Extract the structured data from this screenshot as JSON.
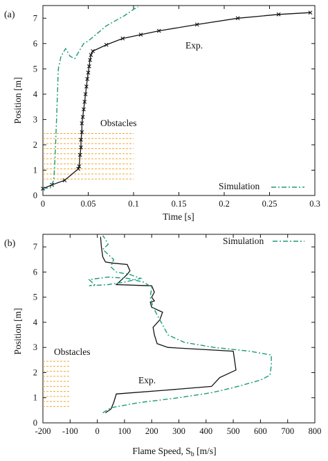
{
  "chart_data": [
    {
      "panel": "(a)",
      "type": "line",
      "xlabel": "Time [s]",
      "ylabel": "Position [m]",
      "xlim": [
        0,
        0.3
      ],
      "ylim": [
        0,
        7.5
      ],
      "xticks": [
        "0",
        "0.05",
        "0.1",
        "0.15",
        "0.2",
        "0.25",
        "0.3"
      ],
      "yticks": [
        "0",
        "1",
        "2",
        "3",
        "4",
        "5",
        "6",
        "7"
      ],
      "grid": false,
      "legend": {
        "position": "bottom-right",
        "label": "Simulation"
      },
      "annotations": {
        "exp": "Exp.",
        "obstacles": "Obstacles"
      },
      "obstacles": {
        "x_range": [
          0,
          0.1
        ],
        "positions": [
          0.65,
          0.85,
          1.05,
          1.25,
          1.45,
          1.65,
          1.85,
          2.05,
          2.25,
          2.45
        ],
        "color": "#f0a830"
      },
      "series": [
        {
          "name": "Exp.",
          "color": "#111111",
          "style": "solid-markers",
          "points": [
            [
              0.0,
              0.27
            ],
            [
              0.01,
              0.42
            ],
            [
              0.024,
              0.6
            ],
            [
              0.039,
              1.05
            ],
            [
              0.04,
              1.15
            ],
            [
              0.041,
              1.6
            ],
            [
              0.042,
              1.9
            ],
            [
              0.042,
              2.2
            ],
            [
              0.043,
              2.5
            ],
            [
              0.043,
              2.85
            ],
            [
              0.044,
              3.1
            ],
            [
              0.045,
              3.4
            ],
            [
              0.046,
              3.7
            ],
            [
              0.047,
              4.0
            ],
            [
              0.048,
              4.3
            ],
            [
              0.049,
              4.6
            ],
            [
              0.05,
              4.85
            ],
            [
              0.051,
              5.1
            ],
            [
              0.052,
              5.35
            ],
            [
              0.053,
              5.55
            ],
            [
              0.055,
              5.7
            ],
            [
              0.07,
              5.95
            ],
            [
              0.088,
              6.2
            ],
            [
              0.108,
              6.35
            ],
            [
              0.128,
              6.5
            ],
            [
              0.17,
              6.75
            ],
            [
              0.215,
              7.0
            ],
            [
              0.26,
              7.15
            ],
            [
              0.295,
              7.22
            ]
          ]
        },
        {
          "name": "Simulation",
          "color": "#1a9a7a",
          "style": "dash-dot",
          "points": [
            [
              0.0,
              0.28
            ],
            [
              0.008,
              0.3
            ],
            [
              0.012,
              0.6
            ],
            [
              0.013,
              1.2
            ],
            [
              0.014,
              2.0
            ],
            [
              0.015,
              3.0
            ],
            [
              0.016,
              4.0
            ],
            [
              0.017,
              5.0
            ],
            [
              0.02,
              5.5
            ],
            [
              0.025,
              5.8
            ],
            [
              0.03,
              5.5
            ],
            [
              0.035,
              5.4
            ],
            [
              0.04,
              5.7
            ],
            [
              0.045,
              6.0
            ],
            [
              0.05,
              6.1
            ],
            [
              0.06,
              6.4
            ],
            [
              0.07,
              6.7
            ],
            [
              0.08,
              6.9
            ],
            [
              0.09,
              7.1
            ],
            [
              0.1,
              7.35
            ],
            [
              0.105,
              7.45
            ]
          ]
        }
      ]
    },
    {
      "panel": "(b)",
      "type": "line",
      "xlabel": "Flame Speed, S",
      "xlabel_sub": "b",
      "xlabel_unit": " [m/s]",
      "ylabel": "Position [m]",
      "xlim": [
        -200,
        800
      ],
      "ylim": [
        0,
        7.5
      ],
      "xticks": [
        "-200",
        "-100",
        "0",
        "100",
        "200",
        "300",
        "400",
        "500",
        "600",
        "700",
        "800"
      ],
      "yticks": [
        "0",
        "1",
        "2",
        "3",
        "4",
        "5",
        "6",
        "7"
      ],
      "grid": false,
      "legend": {
        "position": "top-right",
        "label": "Simulation"
      },
      "annotations": {
        "exp": "Exp.",
        "obstacles": "Obstacles"
      },
      "obstacles": {
        "x_range": [
          -200,
          -100
        ],
        "positions": [
          0.65,
          0.85,
          1.05,
          1.25,
          1.45,
          1.65,
          1.85,
          2.05,
          2.25,
          2.45
        ],
        "color": "#f0a830"
      },
      "series": [
        {
          "name": "Exp.",
          "color": "#111111",
          "style": "solid",
          "points": [
            [
              30,
              0.4
            ],
            [
              50,
              0.55
            ],
            [
              60,
              0.8
            ],
            [
              70,
              1.15
            ],
            [
              250,
              1.3
            ],
            [
              420,
              1.45
            ],
            [
              450,
              1.8
            ],
            [
              510,
              2.1
            ],
            [
              500,
              2.85
            ],
            [
              260,
              3.0
            ],
            [
              220,
              3.15
            ],
            [
              210,
              3.5
            ],
            [
              205,
              3.8
            ],
            [
              230,
              4.1
            ],
            [
              240,
              4.4
            ],
            [
              200,
              4.6
            ],
            [
              195,
              4.8
            ],
            [
              210,
              4.85
            ],
            [
              200,
              5.0
            ],
            [
              210,
              5.2
            ],
            [
              200,
              5.45
            ],
            [
              70,
              5.5
            ],
            [
              90,
              5.7
            ],
            [
              110,
              5.9
            ],
            [
              120,
              6.05
            ],
            [
              110,
              6.3
            ],
            [
              60,
              6.35
            ],
            [
              30,
              6.4
            ],
            [
              20,
              6.6
            ],
            [
              15,
              7.0
            ],
            [
              12,
              7.4
            ]
          ]
        },
        {
          "name": "Simulation",
          "color": "#1a9a7a",
          "style": "dash-dot",
          "points": [
            [
              20,
              0.4
            ],
            [
              50,
              0.6
            ],
            [
              150,
              0.8
            ],
            [
              300,
              1.0
            ],
            [
              420,
              1.2
            ],
            [
              500,
              1.4
            ],
            [
              600,
              1.7
            ],
            [
              635,
              1.9
            ],
            [
              640,
              2.3
            ],
            [
              640,
              2.7
            ],
            [
              560,
              2.85
            ],
            [
              430,
              3.0
            ],
            [
              320,
              3.2
            ],
            [
              260,
              3.5
            ],
            [
              240,
              3.9
            ],
            [
              220,
              4.3
            ],
            [
              205,
              4.6
            ],
            [
              195,
              5.0
            ],
            [
              200,
              5.4
            ],
            [
              170,
              5.6
            ],
            [
              110,
              5.75
            ],
            [
              40,
              5.8
            ],
            [
              -30,
              5.7
            ],
            [
              -10,
              5.5
            ],
            [
              -30,
              5.45
            ],
            [
              40,
              5.5
            ],
            [
              100,
              5.6
            ],
            [
              160,
              5.75
            ],
            [
              120,
              5.9
            ],
            [
              70,
              6.0
            ],
            [
              50,
              6.2
            ],
            [
              60,
              6.5
            ],
            [
              40,
              6.7
            ],
            [
              20,
              6.9
            ],
            [
              40,
              7.1
            ],
            [
              30,
              7.3
            ],
            [
              20,
              7.45
            ]
          ]
        }
      ]
    }
  ]
}
